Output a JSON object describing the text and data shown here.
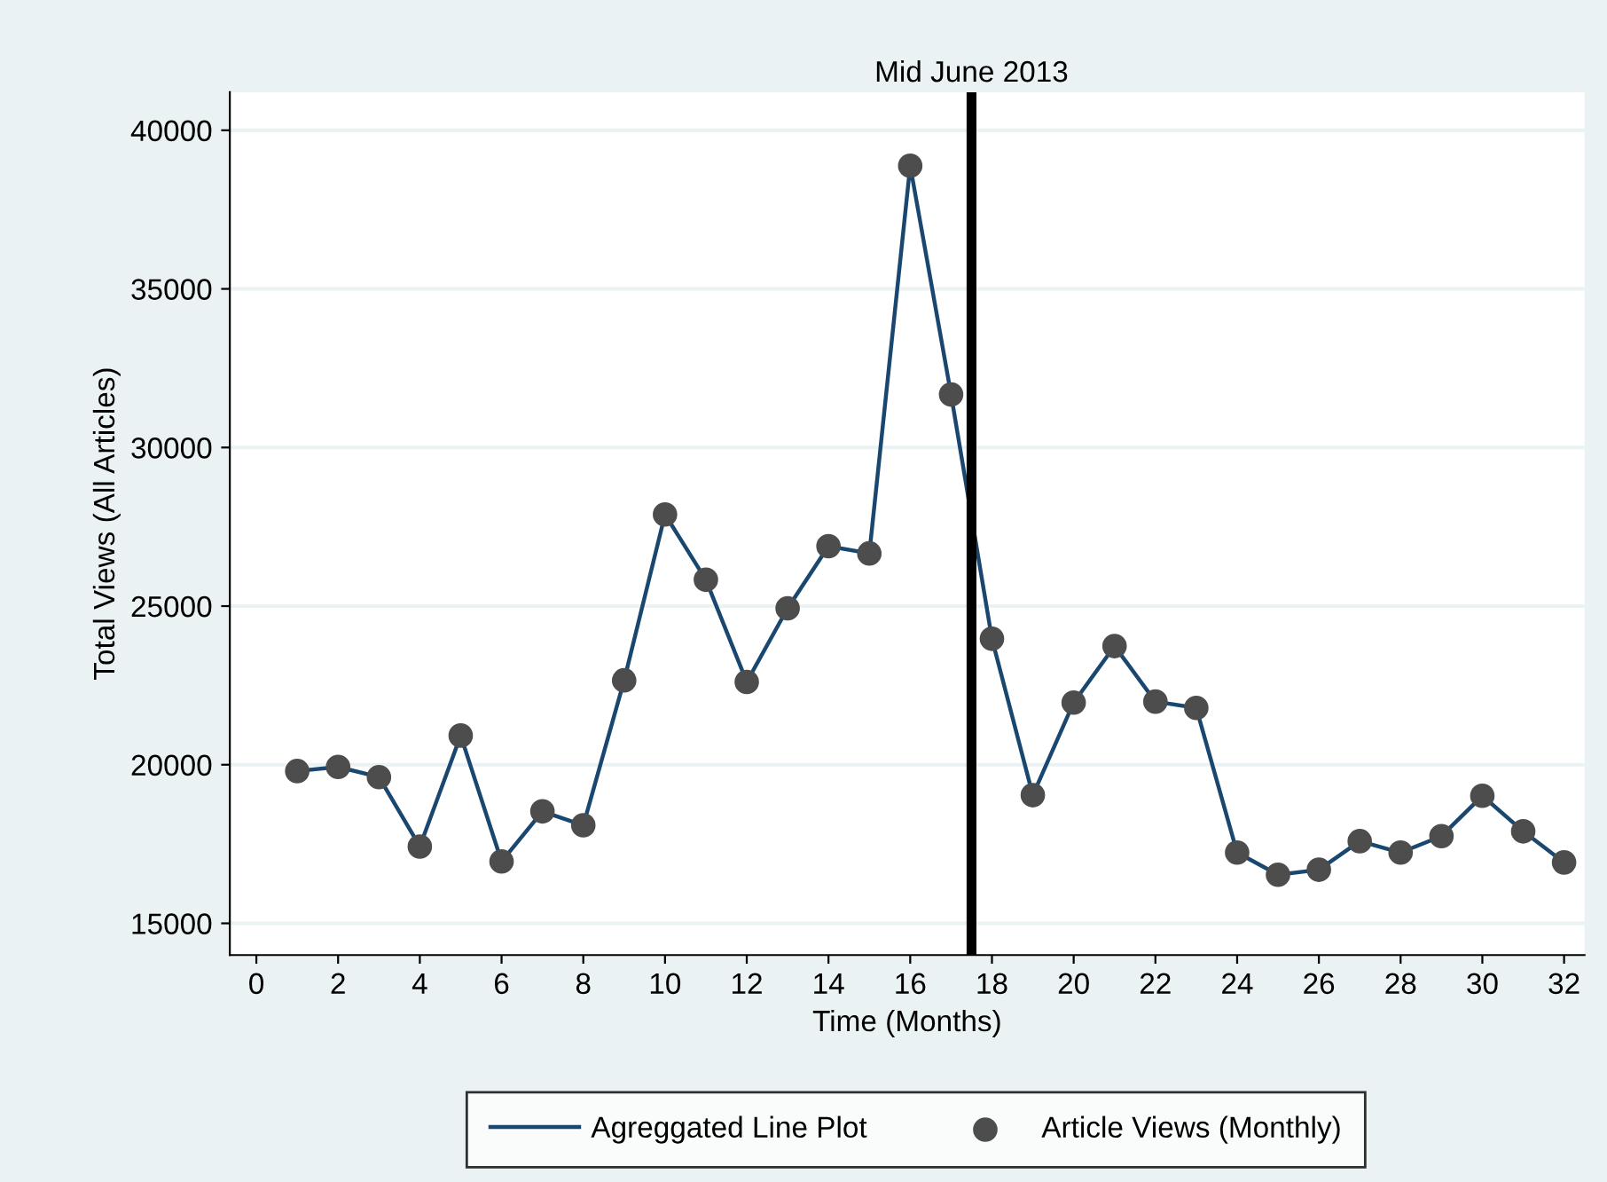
{
  "chart_data": {
    "type": "line",
    "xlabel": "Time (Months)",
    "ylabel": "Total Views (All Articles)",
    "x": [
      1,
      2,
      3,
      4,
      5,
      6,
      7,
      8,
      9,
      10,
      11,
      12,
      13,
      14,
      15,
      16,
      17,
      18,
      19,
      20,
      21,
      22,
      23,
      24,
      25,
      26,
      27,
      28,
      29,
      30,
      31,
      32
    ],
    "series": [
      {
        "name": "Agreggated Line Plot",
        "color": "#1a476f",
        "marker": "none",
        "line_style": "solid",
        "values": [
          19800,
          19930,
          19610,
          17420,
          20920,
          16950,
          18530,
          18090,
          22660,
          27890,
          25830,
          22610,
          24930,
          26890,
          26660,
          38880,
          31670,
          23970,
          19040,
          21960,
          23740,
          21990,
          21790,
          17230,
          16530,
          16690,
          17590,
          17230,
          17750,
          19020,
          17900,
          16920
        ]
      },
      {
        "name": "Article Views (Monthly)",
        "type": "scatter",
        "color": "#4d4d4d",
        "marker": "circle",
        "values": [
          19800,
          19930,
          19610,
          17420,
          20920,
          16950,
          18530,
          18090,
          22660,
          27890,
          25830,
          22610,
          24930,
          26890,
          26660,
          38880,
          31670,
          23970,
          19040,
          21960,
          23740,
          21990,
          21790,
          17230,
          16530,
          16690,
          17590,
          17230,
          17750,
          19020,
          17900,
          16920
        ]
      }
    ],
    "xlim": [
      -0.65,
      32.5
    ],
    "xticks": [
      0,
      2,
      4,
      6,
      8,
      10,
      12,
      14,
      16,
      18,
      20,
      22,
      24,
      26,
      28,
      30,
      32
    ],
    "ylim": [
      14000,
      41200
    ],
    "yticks": [
      15000,
      20000,
      25000,
      30000,
      35000,
      40000
    ],
    "ref_lines": [
      {
        "axis": "x",
        "value": 17.5,
        "label": "Mid June 2013",
        "color": "#000000",
        "line_style": "solid"
      }
    ],
    "grid": "y",
    "legend": "bottom"
  }
}
